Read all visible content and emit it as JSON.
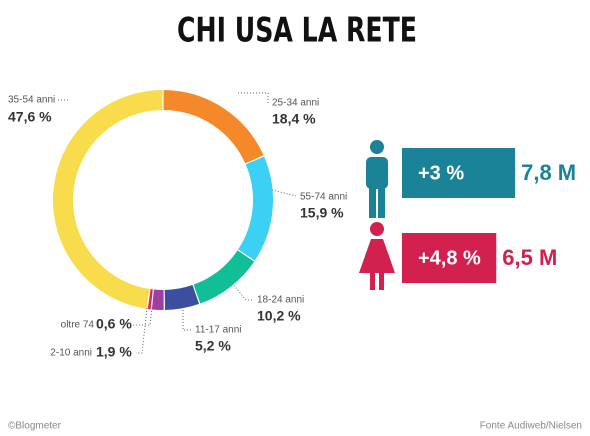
{
  "chart_data": [
    {
      "type": "donut",
      "title": "CHI USA LA RETE",
      "categories": [
        "25-34 anni",
        "55-74 anni",
        "18-24 anni",
        "11-17 anni",
        "2-10 anni",
        "oltre 74",
        "35-54 anni"
      ],
      "values": [
        18.4,
        15.9,
        10.2,
        5.2,
        1.9,
        0.6,
        47.6
      ],
      "value_labels": [
        "18,4 %",
        "15,9 %",
        "10,2 %",
        "5,2 %",
        "1,9 %",
        "0,6 %",
        "47,6 %"
      ],
      "colors": [
        "#f5892a",
        "#3dd0f5",
        "#10bf95",
        "#3a4fa0",
        "#9c3fa0",
        "#e0245e",
        "#f9dc4c"
      ]
    },
    {
      "type": "hbar",
      "values": [
        7.8,
        6.5
      ],
      "value_labels": [
        "7,8 M",
        "6,5 M"
      ],
      "growth": [
        3,
        4.8
      ],
      "growth_labels": [
        "+3 %",
        "+4,8 %"
      ],
      "colors": [
        "#1a8398",
        "#d2204f"
      ],
      "xlim": [
        0,
        8
      ]
    }
  ],
  "credit": "©Blogmeter",
  "source": "Fonte Audiweb/Nielsen"
}
